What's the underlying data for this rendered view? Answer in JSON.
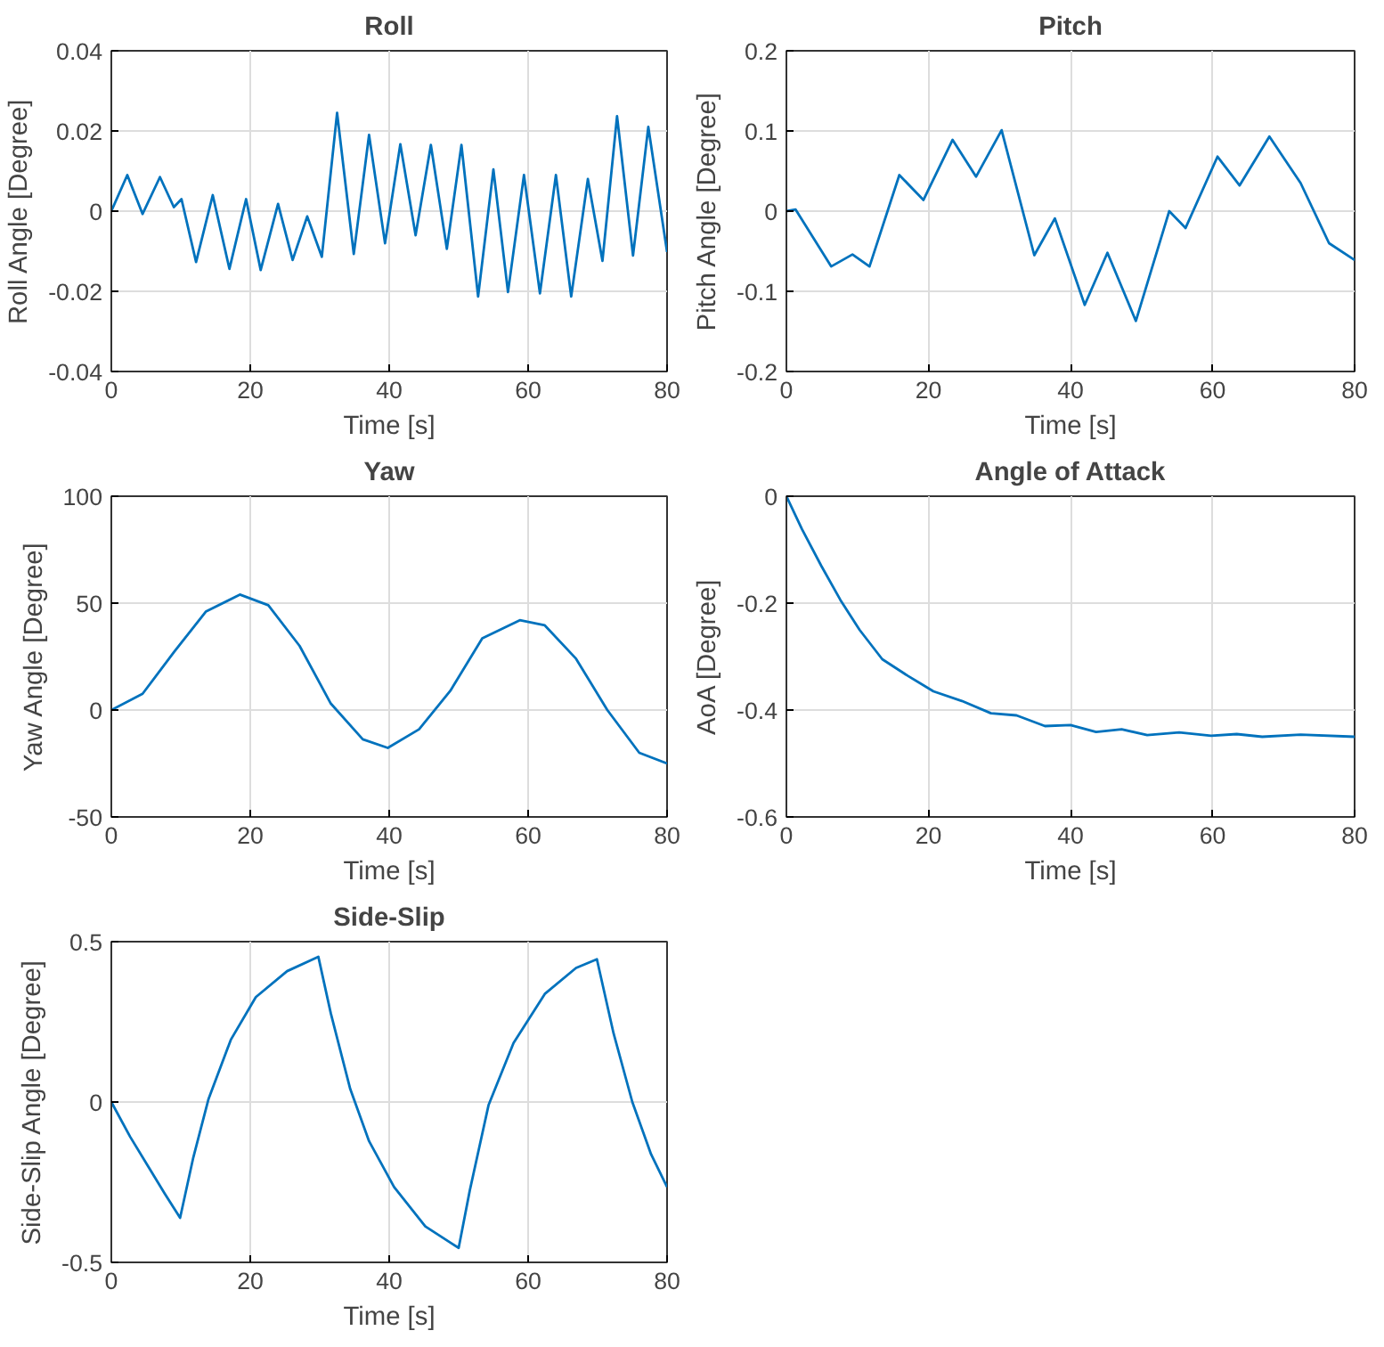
{
  "chart_data": [
    {
      "type": "line",
      "title": "Roll",
      "xlabel": "Time [s]",
      "ylabel": "Roll Angle [Degree]",
      "xlim": [
        0,
        80
      ],
      "ylim": [
        -0.04,
        0.04
      ],
      "xticks": [
        0,
        20,
        40,
        60,
        80
      ],
      "yticks": [
        -0.04,
        -0.02,
        0,
        0.02,
        0.04
      ],
      "grid": true,
      "x": [
        0,
        2.3,
        4.5,
        7,
        9,
        10.1,
        12.2,
        14.6,
        17,
        19.4,
        21.5,
        24,
        26.1,
        28.2,
        30.3,
        32.5,
        34.9,
        37.1,
        39.4,
        41.6,
        43.8,
        46,
        48.3,
        50.4,
        52.8,
        55,
        57.1,
        59.4,
        61.7,
        64,
        66.2,
        68.6,
        70.7,
        72.8,
        75.1,
        77.3,
        80
      ],
      "series": [
        {
          "color": "#0072bd",
          "values": [
            0,
            0.009,
            -0.0007,
            0.0085,
            0.001,
            0.003,
            -0.0127,
            0.004,
            -0.0144,
            0.003,
            -0.0147,
            0.0018,
            -0.0122,
            -0.0013,
            -0.0114,
            0.0245,
            -0.0107,
            0.019,
            -0.008,
            0.0167,
            -0.006,
            0.0165,
            -0.0094,
            0.0165,
            -0.0213,
            0.0104,
            -0.0202,
            0.009,
            -0.0205,
            0.009,
            -0.0213,
            0.008,
            -0.0124,
            0.0237,
            -0.0111,
            0.021,
            -0.0102
          ]
        }
      ]
    },
    {
      "type": "line",
      "title": "Pitch",
      "xlabel": "Time [s]",
      "ylabel": "Pitch Angle [Degree]",
      "xlim": [
        0,
        80
      ],
      "ylim": [
        -0.2,
        0.2
      ],
      "xticks": [
        0,
        20,
        40,
        60,
        80
      ],
      "yticks": [
        -0.2,
        -0.1,
        0,
        0.1,
        0.2
      ],
      "grid": true,
      "x": [
        0,
        1.3,
        6.3,
        9.3,
        11.7,
        15.9,
        19.3,
        23.4,
        26.7,
        30.3,
        34.9,
        37.8,
        42,
        45.2,
        49.2,
        53.9,
        56.2,
        60.7,
        63.8,
        68,
        72.4,
        76.4,
        80
      ],
      "series": [
        {
          "color": "#0072bd",
          "values": [
            0,
            0.002,
            -0.069,
            -0.054,
            -0.069,
            0.045,
            0.014,
            0.089,
            0.043,
            0.101,
            -0.055,
            -0.009,
            -0.117,
            -0.052,
            -0.137,
            0,
            -0.021,
            0.068,
            0.032,
            0.093,
            0.035,
            -0.04,
            -0.061
          ]
        }
      ]
    },
    {
      "type": "line",
      "title": "Yaw",
      "xlabel": "Time [s]",
      "ylabel": "Yaw Angle [Degree]",
      "xlim": [
        0,
        80
      ],
      "ylim": [
        -50,
        100
      ],
      "xticks": [
        0,
        20,
        40,
        60,
        80
      ],
      "yticks": [
        -50,
        0,
        50,
        100
      ],
      "grid": true,
      "x": [
        0,
        4.5,
        9,
        13.6,
        18.5,
        22.6,
        27.1,
        31.6,
        36.2,
        39.8,
        44.3,
        48.8,
        53.4,
        58.8,
        62.4,
        66.9,
        71.4,
        76,
        80
      ],
      "series": [
        {
          "color": "#0072bd",
          "values": [
            0,
            7.6,
            27,
            46,
            54,
            49,
            30,
            3,
            -13.7,
            -17.7,
            -9,
            9,
            33.5,
            42,
            39.6,
            24,
            0,
            -20,
            -25
          ]
        }
      ]
    },
    {
      "type": "line",
      "title": "Angle of Attack",
      "xlabel": "Time [s]",
      "ylabel": "AoA [Degree]",
      "xlim": [
        0,
        80
      ],
      "ylim": [
        -0.6,
        0
      ],
      "xticks": [
        0,
        20,
        40,
        60,
        80
      ],
      "yticks": [
        -0.6,
        -0.4,
        -0.2,
        0
      ],
      "grid": true,
      "x": [
        0,
        2.2,
        4.9,
        7.6,
        10.3,
        13.5,
        17.1,
        20.7,
        24.7,
        28.8,
        32.4,
        36.4,
        40,
        43.6,
        47.2,
        50.8,
        55.3,
        59.8,
        63.4,
        67,
        72.4,
        80
      ],
      "series": [
        {
          "color": "#0072bd",
          "values": [
            0,
            -0.062,
            -0.13,
            -0.194,
            -0.25,
            -0.305,
            -0.336,
            -0.365,
            -0.383,
            -0.406,
            -0.41,
            -0.43,
            -0.428,
            -0.441,
            -0.436,
            -0.447,
            -0.442,
            -0.448,
            -0.445,
            -0.45,
            -0.446,
            -0.45
          ]
        }
      ]
    },
    {
      "type": "line",
      "title": "Side-Slip",
      "xlabel": "Time [s]",
      "ylabel": "Side-Slip Angle [Degree]",
      "xlim": [
        0,
        80
      ],
      "ylim": [
        -0.5,
        0.5
      ],
      "xticks": [
        0,
        20,
        40,
        60,
        80
      ],
      "yticks": [
        -0.5,
        0,
        0.5
      ],
      "grid": true,
      "x": [
        0,
        2.7,
        5.4,
        7.7,
        9.9,
        11.8,
        14,
        17.2,
        20.8,
        25.3,
        29.8,
        31.6,
        34.4,
        37.1,
        40.7,
        45.2,
        50,
        51.6,
        54.3,
        57.9,
        62.4,
        66.9,
        69.9,
        72.3,
        75,
        77.7,
        80
      ],
      "series": [
        {
          "color": "#0072bd",
          "values": [
            0,
            -0.108,
            -0.204,
            -0.286,
            -0.361,
            -0.173,
            0.01,
            0.194,
            0.327,
            0.408,
            0.453,
            0.276,
            0.04,
            -0.122,
            -0.265,
            -0.388,
            -0.455,
            -0.276,
            -0.01,
            0.184,
            0.337,
            0.418,
            0.445,
            0.214,
            0,
            -0.163,
            -0.265
          ]
        }
      ]
    }
  ]
}
